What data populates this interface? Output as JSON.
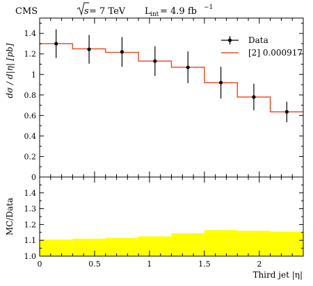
{
  "header": {
    "experiment": "CMS",
    "energy_prefix": "s",
    "energy_value": " = 7 TeV",
    "lumi_symbol": "L",
    "lumi_sub": "int",
    "lumi_value": " = 4.9 fb",
    "lumi_exp": "−1"
  },
  "chart_data": [
    {
      "type": "line",
      "panel": "main",
      "ylabel": "dσ / d|η| [pb]",
      "xlim": [
        0,
        2.4
      ],
      "ylim": [
        0,
        1.55
      ],
      "y_ticks": [
        0,
        0.2,
        0.4,
        0.6,
        0.8,
        1,
        1.2,
        1.4
      ],
      "y_tick_labels": [
        "0",
        "0.2",
        "0.4",
        "0.6",
        "0.8",
        "1",
        "1.2",
        "1.4"
      ],
      "bin_edges": [
        0,
        0.3,
        0.6,
        0.9,
        1.2,
        1.5,
        1.8,
        2.1,
        2.4
      ],
      "series": [
        {
          "name": "Data",
          "style": "points",
          "color": "#000000",
          "x": [
            0.15,
            0.45,
            0.75,
            1.05,
            1.35,
            1.65,
            1.95,
            2.25
          ],
          "values": [
            1.3,
            1.245,
            1.22,
            1.13,
            1.07,
            0.92,
            0.78,
            0.635
          ],
          "errors": [
            0.14,
            0.14,
            0.145,
            0.145,
            0.155,
            0.155,
            0.13,
            0.1
          ]
        },
        {
          "name": "[2] 0.000917",
          "style": "step",
          "color": "#e8502a",
          "values": [
            1.3,
            1.25,
            1.215,
            1.13,
            1.07,
            0.92,
            0.78,
            0.635
          ]
        }
      ],
      "legend_position": "top-right"
    },
    {
      "type": "area",
      "panel": "ratio",
      "ylabel": "MC/Data",
      "xlabel": "Third jet |η|",
      "xlim": [
        0,
        2.4
      ],
      "ylim": [
        1.0,
        1.5
      ],
      "x_ticks": [
        0,
        0.5,
        1,
        1.5,
        2
      ],
      "x_tick_labels": [
        "0",
        "0.5",
        "1",
        "1.5",
        "2"
      ],
      "y_ticks": [
        1.0,
        1.1,
        1.2,
        1.3,
        1.4
      ],
      "y_tick_labels": [
        "1.0",
        "1.1",
        "1.2",
        "1.3",
        "1.4"
      ],
      "bin_edges": [
        0,
        0.3,
        0.6,
        0.9,
        1.2,
        1.5,
        1.8,
        2.1,
        2.4
      ],
      "band_color": "#ffff00",
      "band_low": [
        1.0,
        1.0,
        1.0,
        1.0,
        1.0,
        1.0,
        1.0,
        1.0
      ],
      "band_high": [
        1.105,
        1.11,
        1.115,
        1.125,
        1.145,
        1.165,
        1.16,
        1.155
      ]
    }
  ]
}
